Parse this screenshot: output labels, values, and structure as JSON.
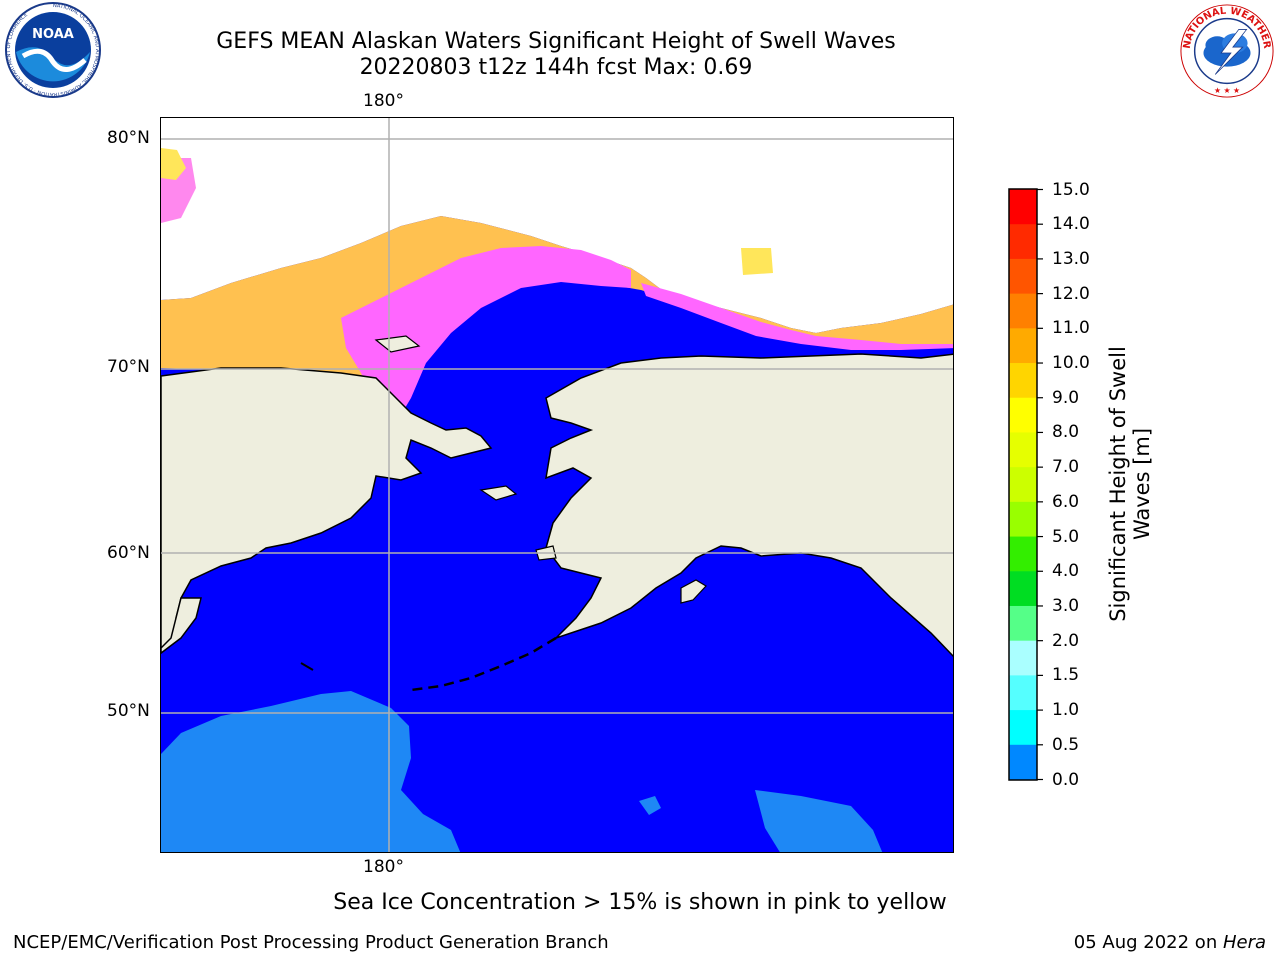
{
  "title": {
    "line1": "GEFS MEAN Alaskan Waters Significant Height of Swell Waves",
    "line2": "20220803 t12z 144h fcst   Max: 0.69"
  },
  "logos": {
    "noaa": {
      "text": "NOAA",
      "ring_text": "NATIONAL OCEANIC AND ATMOSPHERIC ADMINISTRATION · U.S. DEPARTMENT OF COMMERCE"
    },
    "nws": {
      "ring_text": "NATIONAL WEATHER SERVICE"
    }
  },
  "map": {
    "lon_top": "180°",
    "lon_bottom": "180°",
    "lat_labels": [
      "80°N",
      "70°N",
      "60°N",
      "50°N"
    ]
  },
  "colorbar": {
    "label": "Significant Height of Swell Waves [m]",
    "label_line1": "Significant Height of Swell",
    "label_line2": "Waves [m]",
    "ticks": [
      "15.0",
      "14.0",
      "13.0",
      "12.0",
      "11.0",
      "10.0",
      "9.0",
      "8.0",
      "7.0",
      "6.0",
      "5.0",
      "4.0",
      "3.0",
      "2.0",
      "1.5",
      "1.0",
      "0.5",
      "0.0"
    ],
    "colors": [
      "#ff0000",
      "#ff2a00",
      "#ff5500",
      "#ff8000",
      "#ffaa00",
      "#ffd500",
      "#ffff00",
      "#e6ff00",
      "#ccff00",
      "#99ff00",
      "#33ee00",
      "#00dd22",
      "#55ff88",
      "#aaffff",
      "#55ffff",
      "#00ffff",
      "#0088ff",
      "#0000ff"
    ],
    "levels_top_to_bottom": [
      [
        14.0,
        15.0
      ],
      [
        13.0,
        14.0
      ],
      [
        12.0,
        13.0
      ],
      [
        11.0,
        12.0
      ],
      [
        10.0,
        11.0
      ],
      [
        9.0,
        10.0
      ],
      [
        8.0,
        9.0
      ],
      [
        7.0,
        8.0
      ],
      [
        6.0,
        7.0
      ],
      [
        5.0,
        6.0
      ],
      [
        4.0,
        5.0
      ],
      [
        3.0,
        4.0
      ],
      [
        2.0,
        3.0
      ],
      [
        1.5,
        2.0
      ],
      [
        1.0,
        1.5
      ],
      [
        0.5,
        1.0
      ],
      [
        0.0,
        0.5
      ]
    ]
  },
  "note": "Sea Ice Concentration > 15% is shown in pink to yellow",
  "footer": {
    "left": "NCEP/EMC/Verification Post Processing Product Generation Branch",
    "date": "05 Aug 2022 on ",
    "host": "Hera"
  },
  "colors": {
    "ocean": "#0000ff",
    "swell_light": "#1e88f5",
    "land": "#eeeede",
    "ice_pink": "#ff66ff",
    "ice_orange": "#ffb347",
    "ice_yellow": "#ffe65a",
    "gridline": "#b0b0b0"
  }
}
